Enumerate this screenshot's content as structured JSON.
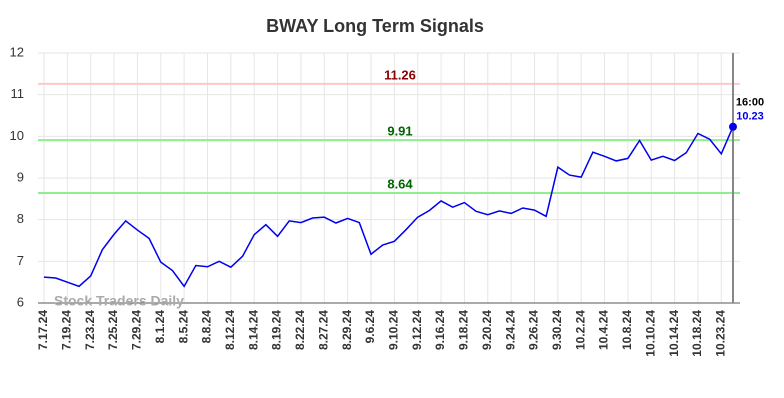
{
  "chart_data": {
    "type": "line",
    "title": "BWAY Long Term Signals",
    "categories": [
      "7.17.24",
      null,
      "7.19.24",
      null,
      "7.23.24",
      null,
      "7.25.24",
      null,
      "7.29.24",
      null,
      "8.1.24",
      null,
      "8.5.24",
      null,
      "8.8.24",
      null,
      "8.12.24",
      null,
      "8.14.24",
      null,
      "8.19.24",
      null,
      "8.22.24",
      null,
      "8.27.24",
      null,
      "8.29.24",
      null,
      "9.6.24",
      null,
      "9.10.24",
      null,
      "9.12.24",
      null,
      "9.16.24",
      null,
      "9.18.24",
      null,
      "9.20.24",
      null,
      "9.24.24",
      null,
      "9.26.24",
      null,
      "9.30.24",
      null,
      "10.2.24",
      null,
      "10.4.24",
      null,
      "10.8.24",
      null,
      "10.10.24",
      null,
      "10.14.24",
      null,
      "10.18.24",
      null,
      "10.23.24",
      null
    ],
    "series": [
      {
        "color": "#0000ee",
        "values": [
          6.62,
          6.6,
          6.5,
          6.4,
          6.65,
          7.28,
          7.65,
          7.97,
          7.75,
          7.55,
          6.98,
          6.78,
          6.4,
          6.9,
          6.87,
          7.0,
          6.86,
          7.12,
          7.64,
          7.88,
          7.6,
          7.97,
          7.93,
          8.04,
          8.06,
          7.92,
          8.03,
          7.93,
          7.17,
          7.39,
          7.48,
          7.76,
          8.06,
          8.22,
          8.45,
          8.3,
          8.41,
          8.2,
          8.12,
          8.21,
          8.15,
          8.28,
          8.23,
          8.08,
          9.26,
          9.07,
          9.02,
          9.62,
          9.52,
          9.41,
          9.47,
          9.9,
          9.43,
          9.52,
          9.42,
          9.61,
          10.07,
          9.93,
          9.58,
          10.23
        ]
      }
    ],
    "ylim": [
      6,
      12
    ],
    "yticks": [
      6,
      7,
      8,
      9,
      10,
      11,
      12
    ],
    "grid": true,
    "hlines": [
      {
        "value": 11.26,
        "color": "#ffc8c8",
        "label_color": "#8b0000"
      },
      {
        "value": 9.91,
        "color": "#90ee90",
        "label_color": "#006400"
      },
      {
        "value": 8.64,
        "color": "#90ee90",
        "label_color": "#006400"
      }
    ],
    "last_time": "16:00",
    "watermark": "Stock Traders Daily"
  }
}
